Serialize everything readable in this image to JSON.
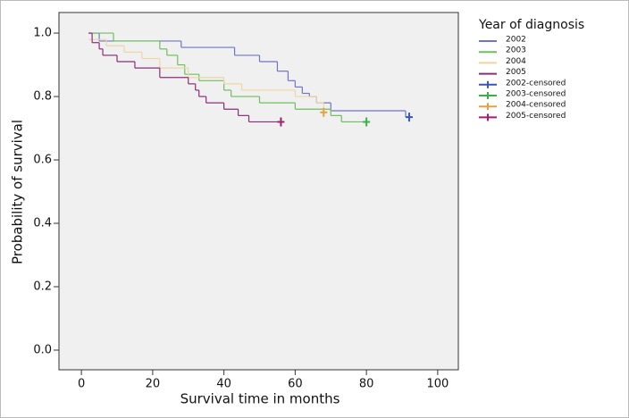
{
  "chart_data": {
    "type": "line",
    "step": "post",
    "xlabel": "Survival time in months",
    "ylabel": "Probability of survival",
    "xlim": [
      -6.3,
      105.8
    ],
    "ylim": [
      -0.062,
      1.065
    ],
    "xticks": [
      0,
      20,
      40,
      60,
      80,
      100
    ],
    "yticks": [
      {
        "value": 0,
        "label": "0.0"
      },
      0.2,
      0.4,
      0.6,
      0.8,
      {
        "value": 1,
        "label": "1.0"
      }
    ],
    "legend_title": "Year of diagnosis",
    "legend": "outside-right",
    "series": [
      {
        "name": "2002",
        "color": "#6f74c8",
        "x": [
          2,
          5,
          28,
          43,
          50,
          55,
          58,
          60,
          62,
          64,
          66,
          70,
          91,
          92
        ],
        "values": [
          1.0,
          0.975,
          0.955,
          0.93,
          0.91,
          0.88,
          0.85,
          0.83,
          0.81,
          0.8,
          0.78,
          0.755,
          0.735,
          0.735
        ]
      },
      {
        "name": "2003",
        "color": "#6cbf5c",
        "x": [
          2,
          9,
          22,
          24,
          27,
          29,
          33,
          40,
          42,
          50,
          60,
          70,
          73,
          76,
          80
        ],
        "values": [
          1.0,
          0.975,
          0.95,
          0.93,
          0.9,
          0.87,
          0.85,
          0.82,
          0.8,
          0.78,
          0.76,
          0.74,
          0.72,
          0.72,
          0.72
        ]
      },
      {
        "name": "2004",
        "color": "#ecd7a4",
        "x": [
          2,
          7,
          12,
          17,
          22,
          30,
          40,
          45,
          60,
          66,
          68
        ],
        "values": [
          0.98,
          0.96,
          0.94,
          0.92,
          0.89,
          0.86,
          0.84,
          0.82,
          0.8,
          0.78,
          0.75
        ]
      },
      {
        "name": "2005",
        "color": "#8a2e7a",
        "x": [
          2,
          3,
          5,
          6,
          10,
          15,
          22,
          30,
          32,
          33,
          35,
          40,
          44,
          47,
          56
        ],
        "values": [
          1.0,
          0.97,
          0.95,
          0.93,
          0.91,
          0.89,
          0.86,
          0.84,
          0.82,
          0.8,
          0.78,
          0.76,
          0.74,
          0.72,
          0.72
        ]
      },
      {
        "name": "2002-censored",
        "color": "#3a55c0",
        "marker": "+",
        "x": [
          92
        ],
        "values": [
          0.735
        ]
      },
      {
        "name": "2003-censored",
        "color": "#3bb04a",
        "marker": "+",
        "x": [
          80
        ],
        "values": [
          0.72
        ]
      },
      {
        "name": "2004-censored",
        "color": "#e8a040",
        "marker": "+",
        "x": [
          68
        ],
        "values": [
          0.75
        ]
      },
      {
        "name": "2005-censored",
        "color": "#a02070",
        "marker": "+",
        "x": [
          56
        ],
        "values": [
          0.72
        ]
      }
    ]
  }
}
